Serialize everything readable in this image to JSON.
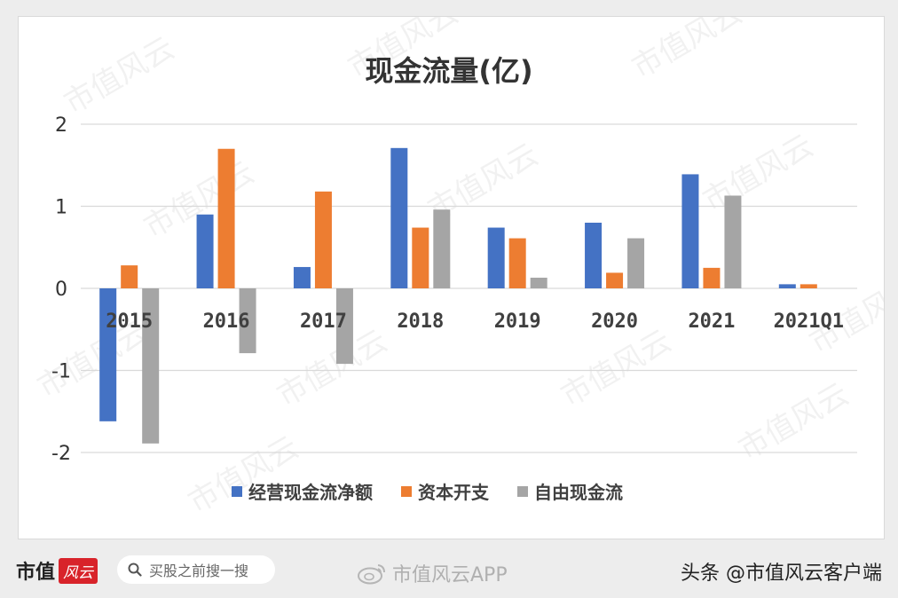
{
  "chart_data": {
    "type": "bar",
    "title": "现金流量(亿)",
    "categories": [
      "2015",
      "2016",
      "2017",
      "2018",
      "2019",
      "2020",
      "2021",
      "2021Q1"
    ],
    "series": [
      {
        "name": "经营现金流净额",
        "color": "#4472c4",
        "values": [
          -1.62,
          0.9,
          0.26,
          1.71,
          0.74,
          0.8,
          1.39,
          0.05
        ]
      },
      {
        "name": "资本开支",
        "color": "#ed7d31",
        "values": [
          0.28,
          1.7,
          1.18,
          0.74,
          0.61,
          0.19,
          0.25,
          0.05
        ]
      },
      {
        "name": "自由现金流",
        "color": "#a5a5a5",
        "values": [
          -1.89,
          -0.79,
          -0.92,
          0.96,
          0.13,
          0.61,
          1.13,
          0.0
        ]
      }
    ],
    "yticks": [
      "2",
      "1",
      "0",
      "-1",
      "-2"
    ],
    "ylim": [
      -2,
      2
    ],
    "grid": true,
    "legend": "bottom"
  },
  "footer": {
    "brand": "市值",
    "brand_stamp": "风云",
    "search_placeholder": "买股之前搜一搜",
    "weibo_text": "市值风云APP",
    "toutiao_text": "头条 @市值风云客户端"
  },
  "watermark_text": "市值风云"
}
